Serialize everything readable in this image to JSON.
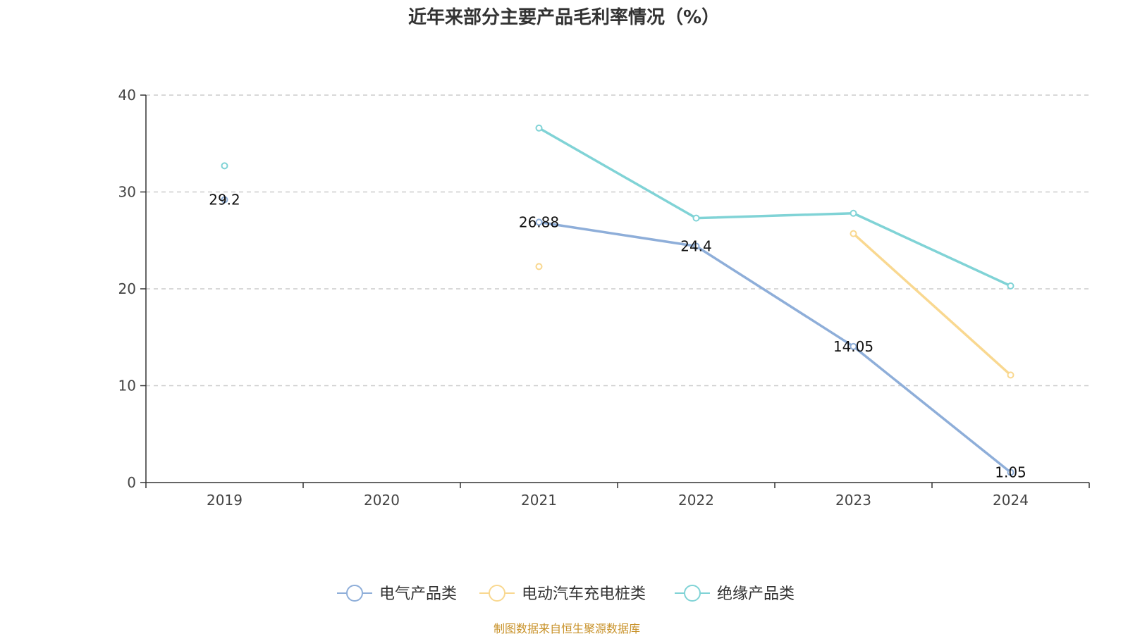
{
  "chart_data": {
    "type": "line",
    "title": "近年来部分主要产品毛利率情况（%）",
    "categories": [
      "2019",
      "2020",
      "2021",
      "2022",
      "2023",
      "2024"
    ],
    "ylim": [
      0,
      40
    ],
    "yticks": [
      0,
      10,
      20,
      30,
      40
    ],
    "grid": true,
    "legend_position": "bottom",
    "series": [
      {
        "name": "电气产品类",
        "color": "#8eaed9",
        "values": [
          29.2,
          null,
          26.88,
          24.4,
          14.05,
          1.05
        ],
        "labels": [
          "29.2",
          "",
          "26.88",
          "24.4",
          "14.05",
          "1.05"
        ]
      },
      {
        "name": "电动汽车充电桩类",
        "color": "#f9d890",
        "values": [
          null,
          null,
          22.3,
          null,
          25.7,
          11.1
        ],
        "labels": [
          "",
          "",
          "",
          "",
          "",
          ""
        ]
      },
      {
        "name": "绝缘产品类",
        "color": "#80d3d6",
        "values": [
          32.7,
          null,
          36.6,
          27.3,
          27.8,
          20.3
        ],
        "labels": [
          "",
          "",
          "",
          "",
          "",
          ""
        ]
      }
    ],
    "source": "制图数据来自恒生聚源数据库"
  }
}
